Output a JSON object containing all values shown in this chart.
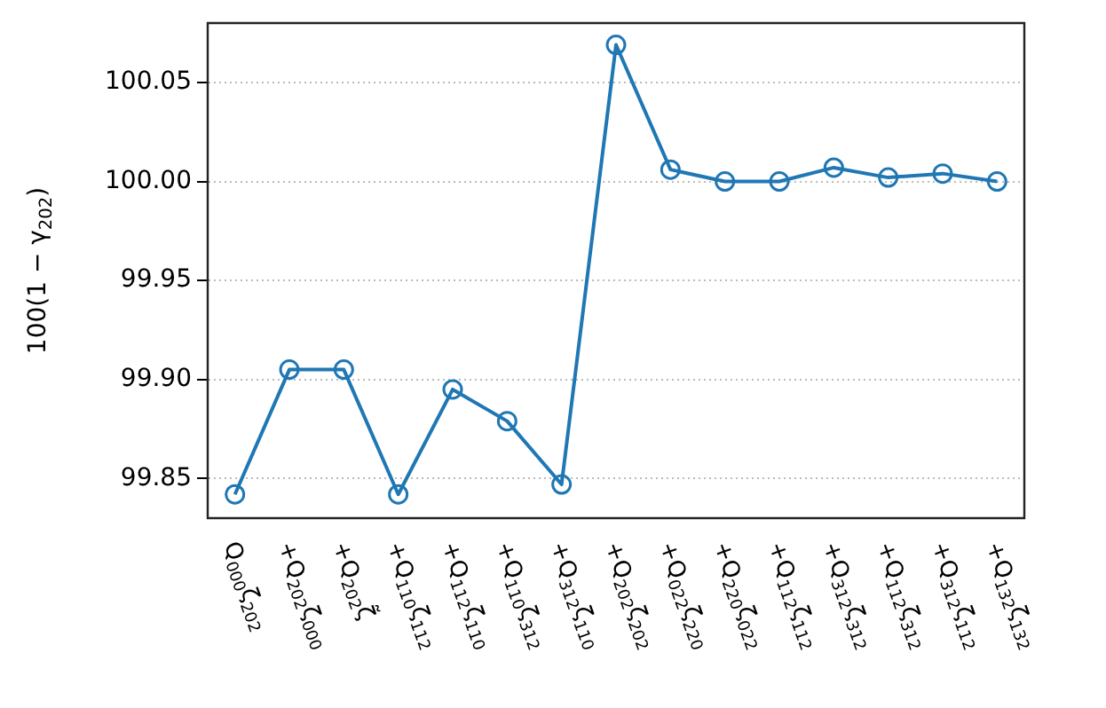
{
  "chart_data": {
    "type": "line",
    "ylabel": "100(1 − γ$_{202}$)",
    "categories": [
      "Q$_{000}$ζ$_{202}$",
      "+Q$_{202}$ζ$_{000}$",
      "+Q$_{202}$ζ̃",
      "+Q$_{110}$ζ$_{112}$",
      "+Q$_{112}$ζ$_{110}$",
      "+Q$_{110}$ζ$_{312}$",
      "+Q$_{312}$ζ$_{110}$",
      "+Q$_{202}$ζ$_{202}$",
      "+Q$_{022}$ζ$_{220}$",
      "+Q$_{220}$ζ$_{022}$",
      "+Q$_{112}$ζ$_{112}$",
      "+Q$_{312}$ζ$_{312}$",
      "+Q$_{112}$ζ$_{312}$",
      "+Q$_{312}$ζ$_{112}$",
      "+Q$_{132}$ζ$_{132}$"
    ],
    "series": [
      {
        "color": "#1f77b4",
        "values": [
          99.842,
          99.905,
          99.905,
          99.842,
          99.895,
          99.879,
          99.847,
          100.069,
          100.006,
          100.0,
          100.0,
          100.007,
          100.002,
          100.004,
          100.0
        ]
      }
    ],
    "ylim": [
      99.83,
      100.08
    ],
    "yticks": [
      {
        "value": 99.85,
        "label": "99.85"
      },
      {
        "value": 99.9,
        "label": "99.90"
      },
      {
        "value": 99.95,
        "label": "99.95"
      },
      {
        "value": 100.0,
        "label": "100.00"
      },
      {
        "value": 100.05,
        "label": "100.05"
      }
    ],
    "grid": "y",
    "marker": "circle",
    "line_style": "solid"
  }
}
